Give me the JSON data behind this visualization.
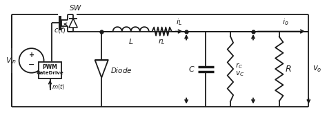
{
  "bg_color": "#ffffff",
  "line_color": "#1a1a1a",
  "lw": 1.3,
  "figsize": [
    4.74,
    1.67
  ],
  "dpi": 100
}
